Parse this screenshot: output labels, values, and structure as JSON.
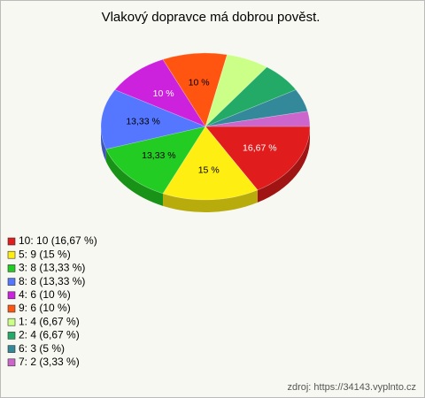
{
  "chart_data": {
    "type": "pie3d",
    "title": "Vlakový dopravce má dobrou pověst.",
    "categories": [
      "10: 10 (16,67 %)",
      "5: 9 (15 %)",
      "3: 8 (13,33 %)",
      "8: 8 (13,33 %)",
      "4: 6 (10 %)",
      "9: 6 (10 %)",
      "1: 4 (6,67 %)",
      "2: 4 (6,67 %)",
      "6: 3 (5 %)",
      "7: 2 (3,33 %)"
    ],
    "values": [
      16.67,
      15,
      13.33,
      13.33,
      10,
      10,
      6.67,
      6.67,
      5,
      3.33
    ],
    "value_labels": [
      "16,67 %",
      "15 %",
      "13,33 %",
      "13,33 %",
      "10 %",
      "10 %",
      null,
      null,
      null,
      null
    ],
    "colors": [
      "#e01c1c",
      "#ffee11",
      "#22cc22",
      "#5577ff",
      "#cc22dd",
      "#ff5511",
      "#ccff88",
      "#22aa66",
      "#338899",
      "#cc66cc"
    ],
    "legend": "bottom-left",
    "source": "zdroj: https://34143.vyplnto.cz"
  }
}
